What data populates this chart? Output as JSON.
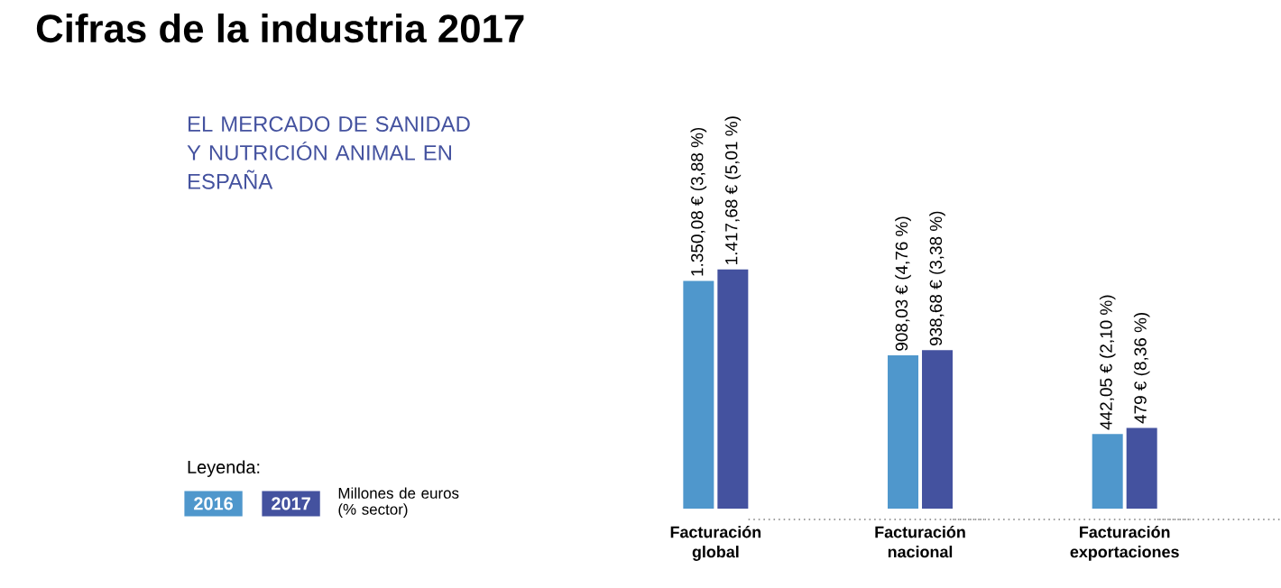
{
  "chart_data": {
    "type": "bar",
    "title": "Cifras de la industria 2017",
    "subtitle": "EL MERCADO DE SANIDAD Y NUTRICIÓN ANIMAL EN ESPAÑA",
    "legend_title": "Leyenda:",
    "legend": "bottom left",
    "categories": [
      "Facturación global",
      "Facturación nacional",
      "Facturación exportaciones"
    ],
    "series": [
      {
        "name": "2016",
        "color": "#4f97cc",
        "values": [
          1350.08,
          908.03,
          442.05
        ],
        "value_labels": [
          "1.350,08 € (3,88 %)",
          "908,03 € (4,76 %)",
          "442,05 € (2,10 %)"
        ]
      },
      {
        "name": "2017",
        "color": "#44529f",
        "values": [
          1417.68,
          938.68,
          479
        ],
        "value_labels": [
          "1.417,68 € (5,01 %)",
          "938,68 € (3,38 %)",
          "479 € (8,36 %)"
        ]
      }
    ],
    "annotations": [
      "Millones de euros (% sector)"
    ]
  }
}
